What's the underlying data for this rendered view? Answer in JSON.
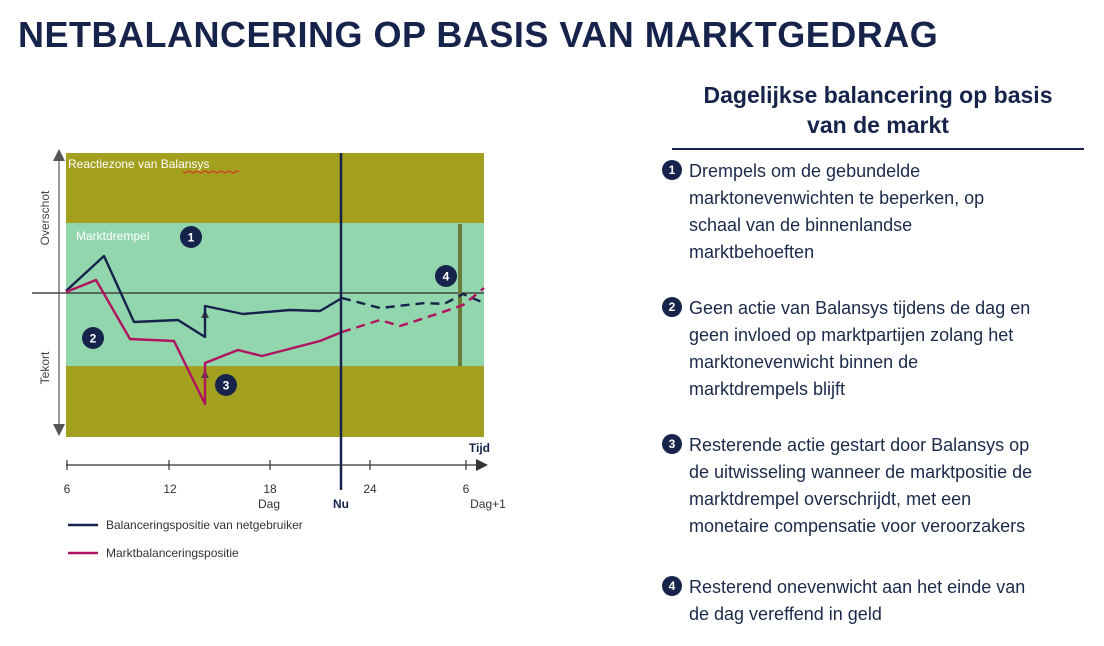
{
  "title": "NETBALANCERING OP BASIS VAN MARKTGEDRAG",
  "diagram": {
    "zone_label": "Reactiezone van Balansys",
    "threshold_label": "Marktdrempel",
    "y_axis_top_label": "Overschot",
    "y_axis_bottom_label": "Tekort",
    "x_axis_label": "Tijd",
    "tick_labels": [
      "6",
      "12",
      "18",
      "24",
      "6"
    ],
    "day_label": "Dag",
    "now_label": "Nu",
    "next_day_label": "Dag+1",
    "markers": [
      "1",
      "2",
      "3",
      "4"
    ],
    "legend": [
      {
        "label": "Balanceringspositie van netgebruiker",
        "color": "#16234a"
      },
      {
        "label": "Marktbalanceringspositie",
        "color": "#b0135f"
      }
    ],
    "colors": {
      "reaction_zone": "#a4a01f",
      "threshold_band": "#92d6ae",
      "user_line": "#16234a",
      "market_line": "#b0135f",
      "end_marker": "#6b7b3a"
    }
  },
  "right_panel": {
    "heading_line1": "Dagelijkse balancering op basis",
    "heading_line2": "van de markt",
    "notes": [
      {
        "num": "1",
        "lines": [
          "Drempels om de gebundelde",
          "marktonevenwichten te beperken, op",
          "schaal van de binnenlandse",
          "marktbehoeften"
        ]
      },
      {
        "num": "2",
        "lines": [
          "Geen actie van Balansys tijdens de dag en",
          "geen invloed op marktpartijen zolang het",
          "marktonevenwicht binnen de",
          "marktdrempels blijft"
        ]
      },
      {
        "num": "3",
        "lines": [
          "Resterende actie gestart door Balansys op",
          "de uitwisseling wanneer de marktpositie de",
          "marktdrempel overschrijdt, met een",
          "monetaire compensatie voor veroorzakers"
        ]
      },
      {
        "num": "4",
        "lines": [
          "Resterend onevenwicht aan het einde van",
          "de dag vereffend in geld"
        ]
      }
    ]
  }
}
